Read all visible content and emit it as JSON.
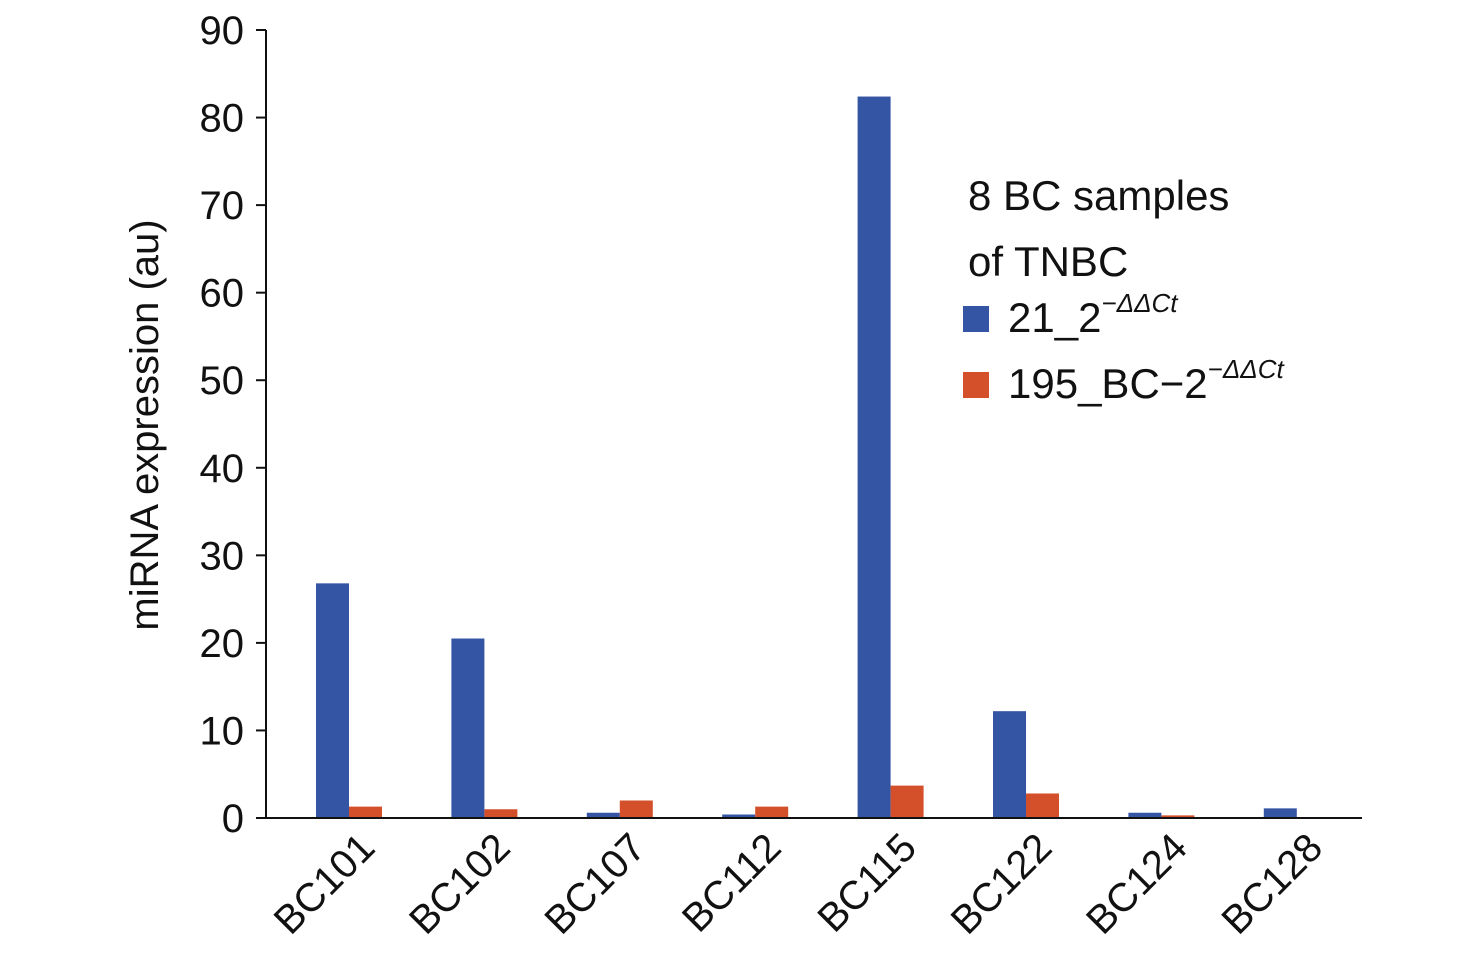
{
  "chart_data": {
    "type": "bar",
    "title": "",
    "xlabel": "",
    "ylabel": "miRNA expression (au)",
    "ylim": [
      0,
      90
    ],
    "yticks": [
      0,
      10,
      20,
      30,
      40,
      50,
      60,
      70,
      80,
      90
    ],
    "grid": false,
    "legend_position": "top-right",
    "categories": [
      "BC101",
      "BC102",
      "BC107",
      "BC112",
      "BC115",
      "BC122",
      "BC124",
      "BC128"
    ],
    "legend": {
      "title_lines": [
        "8 BC samples",
        "of TNBC"
      ],
      "entries": [
        {
          "base": "21_2",
          "superscript": "−ΔΔCt"
        },
        {
          "base": "195_BC−2",
          "superscript": "−ΔΔCt"
        }
      ]
    },
    "series": [
      {
        "color": "#3454a4",
        "values": [
          26.8,
          20.5,
          0.6,
          0.4,
          82.4,
          12.2,
          0.6,
          1.1
        ]
      },
      {
        "color": "#d4502a",
        "values": [
          1.3,
          1.0,
          2.0,
          1.3,
          3.7,
          2.8,
          0.3,
          0.05
        ]
      }
    ]
  }
}
